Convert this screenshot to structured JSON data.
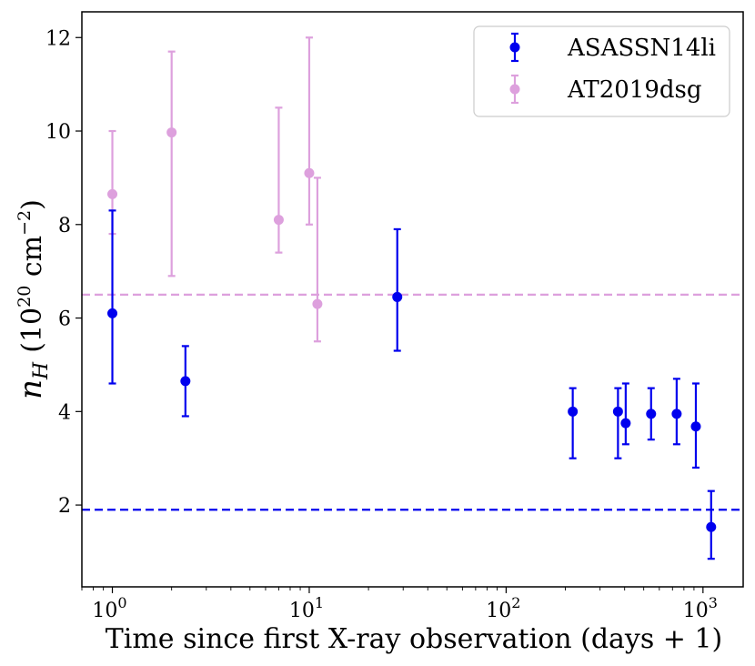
{
  "chart_data": {
    "type": "scatter",
    "title": "",
    "xlabel": "Time since first X-ray observation (days + 1)",
    "ylabel_main": "n",
    "ylabel_sub": "H",
    "ylabel_units_prefix": "(10",
    "ylabel_units_exp1": "20",
    "ylabel_units_mid": " cm",
    "ylabel_units_exp2": "−2",
    "ylabel_units_suffix": ")",
    "xscale": "log",
    "xlim": [
      0.7,
      1600
    ],
    "ylim": [
      0.25,
      12.55
    ],
    "x_ticks": [
      {
        "value": 1,
        "base": "10",
        "exp": "0"
      },
      {
        "value": 10,
        "base": "10",
        "exp": "1"
      },
      {
        "value": 100,
        "base": "10",
        "exp": "2"
      },
      {
        "value": 1000,
        "base": "10",
        "exp": "3"
      }
    ],
    "y_ticks": [
      {
        "value": 2,
        "label": "2"
      },
      {
        "value": 4,
        "label": "4"
      },
      {
        "value": 6,
        "label": "6"
      },
      {
        "value": 8,
        "label": "8"
      },
      {
        "value": 10,
        "label": "10"
      },
      {
        "value": 12,
        "label": "12"
      }
    ],
    "legend_position": "top-right",
    "series": [
      {
        "name": "ASASSN14li",
        "color": "#0000ee",
        "hline": 1.9,
        "points": [
          {
            "x": 1.0,
            "y": 6.1,
            "lo": 4.6,
            "hi": 8.3
          },
          {
            "x": 2.35,
            "y": 4.65,
            "lo": 3.9,
            "hi": 5.4
          },
          {
            "x": 28,
            "y": 6.45,
            "lo": 5.3,
            "hi": 7.9
          },
          {
            "x": 218,
            "y": 4.0,
            "lo": 3.0,
            "hi": 4.5
          },
          {
            "x": 370,
            "y": 4.0,
            "lo": 3.0,
            "hi": 4.5
          },
          {
            "x": 405,
            "y": 3.75,
            "lo": 3.3,
            "hi": 4.6
          },
          {
            "x": 545,
            "y": 3.95,
            "lo": 3.4,
            "hi": 4.5
          },
          {
            "x": 735,
            "y": 3.95,
            "lo": 3.3,
            "hi": 4.7
          },
          {
            "x": 920,
            "y": 3.68,
            "lo": 2.8,
            "hi": 4.6
          },
          {
            "x": 1100,
            "y": 1.53,
            "lo": 0.85,
            "hi": 2.3
          }
        ]
      },
      {
        "name": "AT2019dsg",
        "color": "#dda0dd",
        "hline": 6.5,
        "points": [
          {
            "x": 1.0,
            "y": 8.65,
            "lo": 7.8,
            "hi": 10.0
          },
          {
            "x": 2.0,
            "y": 9.97,
            "lo": 6.9,
            "hi": 11.7
          },
          {
            "x": 7.0,
            "y": 8.1,
            "lo": 7.4,
            "hi": 10.5
          },
          {
            "x": 10.0,
            "y": 9.1,
            "lo": 8.0,
            "hi": 12.0
          },
          {
            "x": 11.0,
            "y": 6.3,
            "lo": 5.5,
            "hi": 9.0
          }
        ]
      }
    ]
  }
}
